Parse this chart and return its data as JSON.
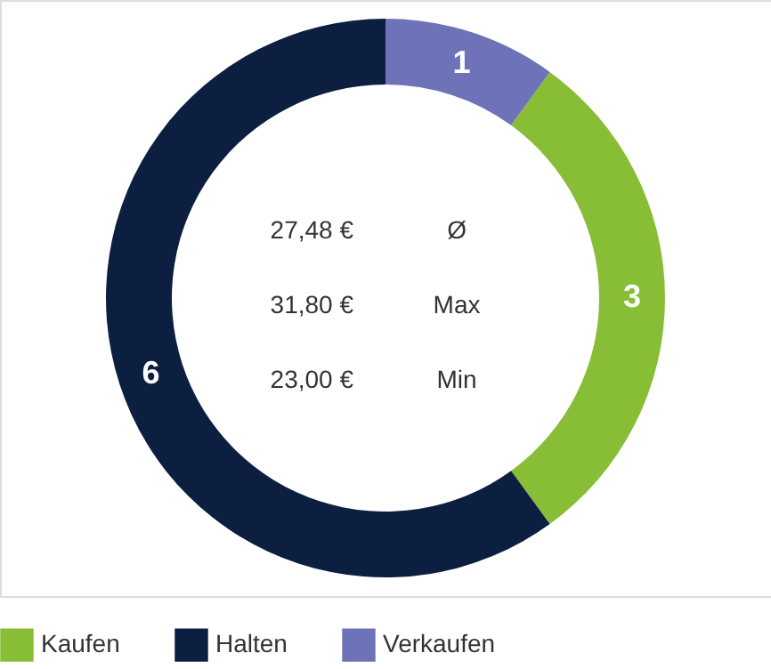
{
  "chart_data": {
    "type": "donut",
    "categories": [
      "Kaufen",
      "Halten",
      "Verkaufen"
    ],
    "values": [
      3,
      6,
      1
    ],
    "colors": [
      "#88bd36",
      "#0c1f40",
      "#6e72b8"
    ],
    "data_labels": true,
    "legend": "bottom",
    "annotations": [
      "27,48 €",
      "Ø",
      "31,80 €",
      "Max",
      "23,00 €",
      "Min"
    ]
  }
}
